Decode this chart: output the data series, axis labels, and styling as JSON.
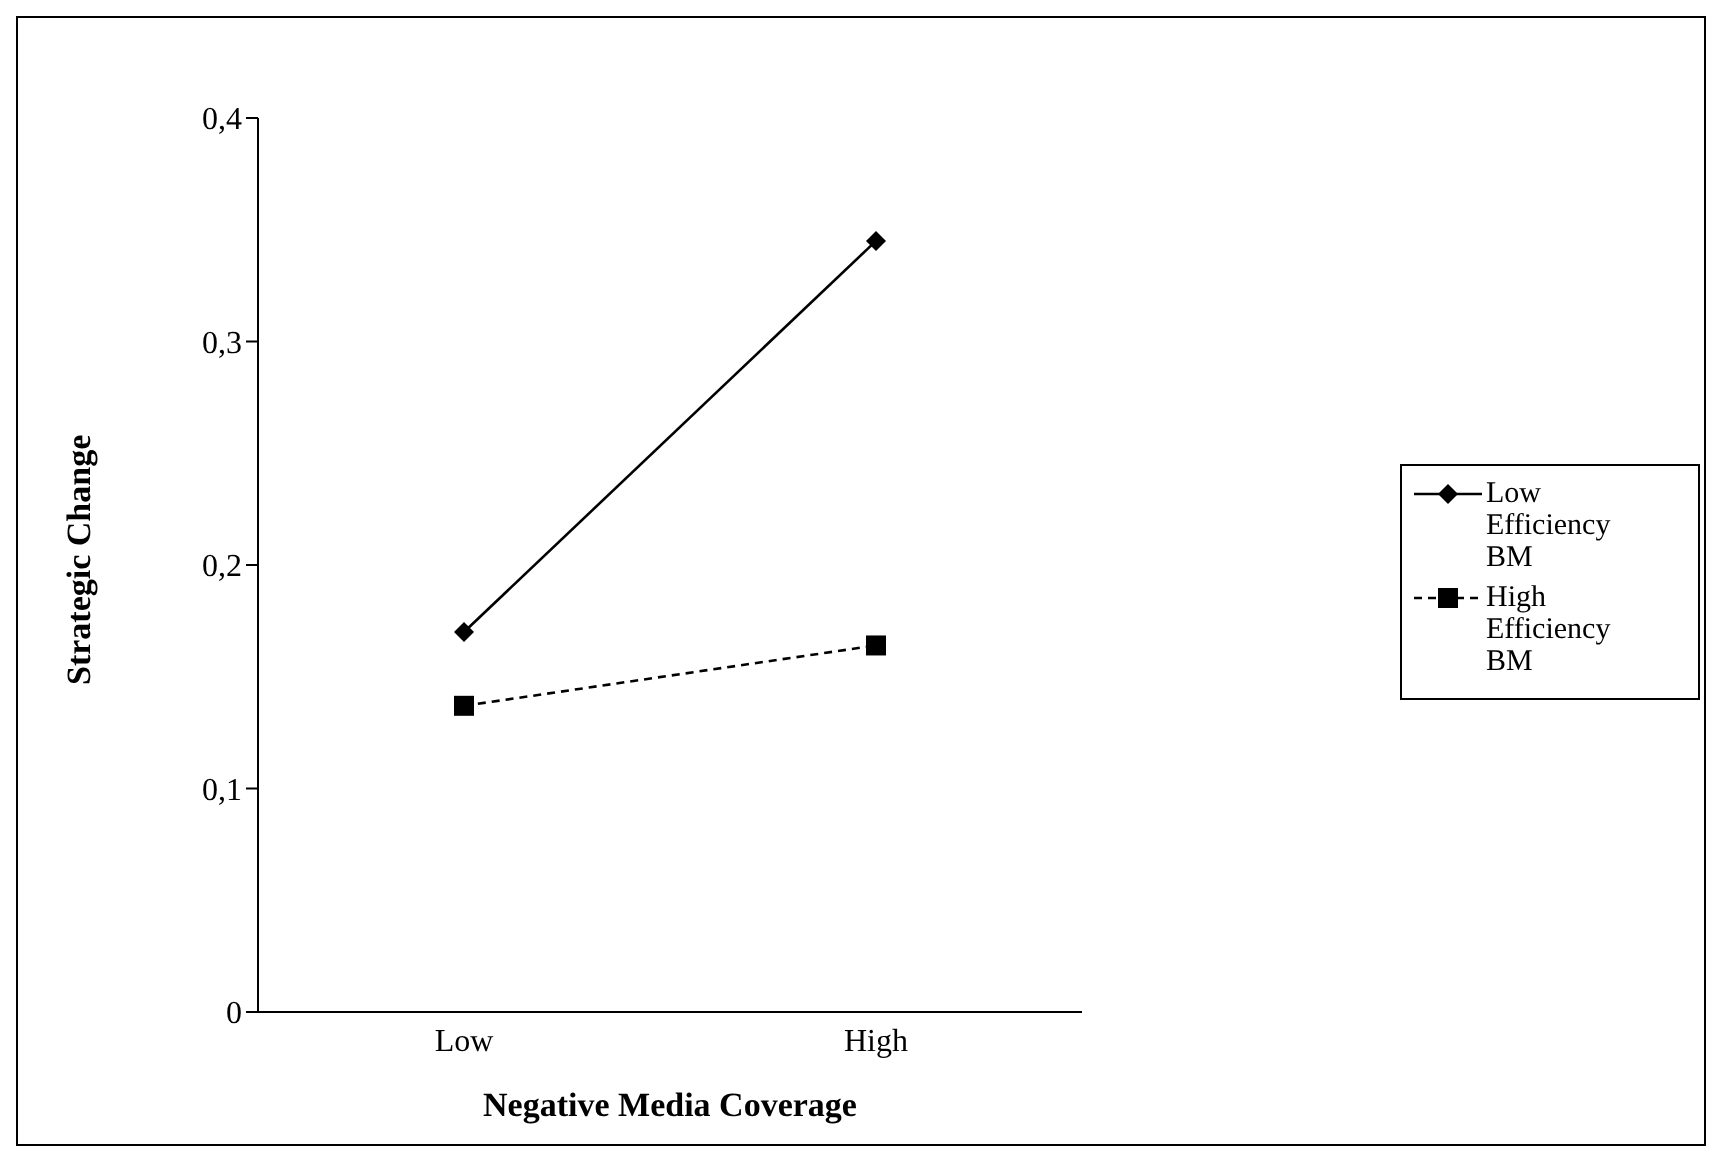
{
  "chart_data": {
    "type": "line",
    "xlabel": "Negative Media Coverage",
    "ylabel": "Strategic Change",
    "categories": [
      "Low",
      "High"
    ],
    "series": [
      {
        "name": "Low Efficiency BM",
        "color": "#000000",
        "values": [
          0.17,
          0.345
        ],
        "marker": "diamond",
        "line_style": "solid"
      },
      {
        "name": "High Efficiency BM",
        "color": "#000000",
        "values": [
          0.137,
          0.164
        ],
        "marker": "square",
        "line_style": "dashed"
      }
    ],
    "ylim": [
      0,
      0.4
    ],
    "yticks": [
      {
        "value": 0,
        "label": "0"
      },
      {
        "value": 0.1,
        "label": "0,1"
      },
      {
        "value": 0.2,
        "label": "0,2"
      },
      {
        "value": 0.3,
        "label": "0,3"
      },
      {
        "value": 0.4,
        "label": "0,4"
      }
    ],
    "grid": false,
    "legend": "right"
  }
}
